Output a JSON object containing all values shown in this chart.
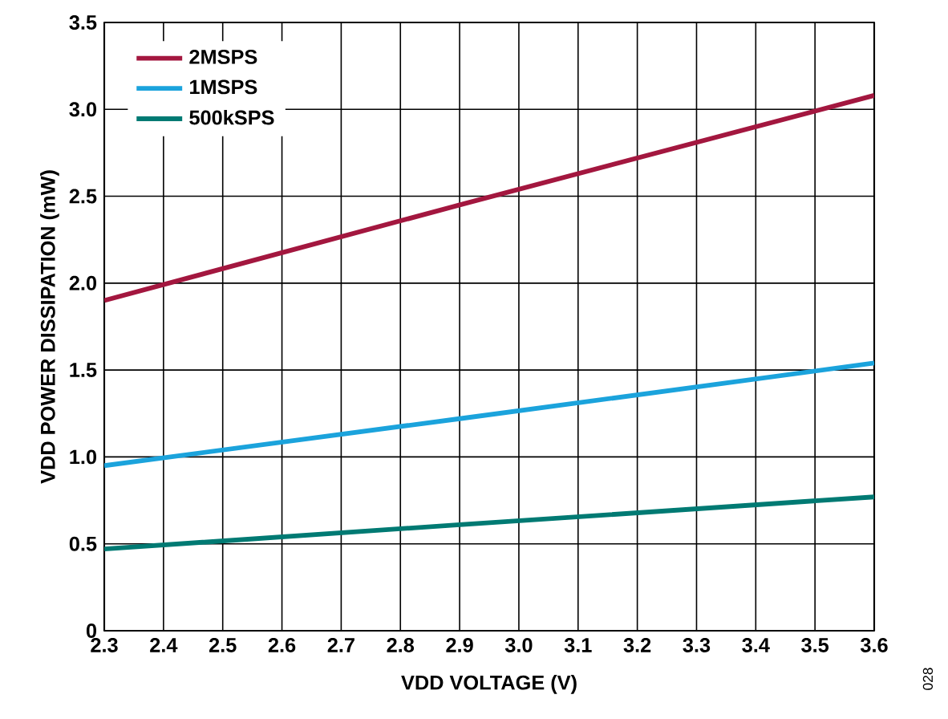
{
  "chart_data": {
    "type": "line",
    "xlabel": "VDD VOLTAGE (V)",
    "ylabel": "VDD POWER DISSIPATION (mW)",
    "x": [
      2.3,
      2.9,
      3.6
    ],
    "series": [
      {
        "name": "2MSPS",
        "color": "#a3173f",
        "values": [
          1.9,
          2.45,
          3.08
        ]
      },
      {
        "name": "1MSPS",
        "color": "#1ba3dc",
        "values": [
          0.95,
          1.22,
          1.54
        ]
      },
      {
        "name": "500kSPS",
        "color": "#007a73",
        "values": [
          0.47,
          0.61,
          0.77
        ]
      }
    ],
    "xlim": [
      2.3,
      3.6
    ],
    "xticks": [
      2.3,
      2.4,
      2.5,
      2.6,
      2.7,
      2.8,
      2.9,
      {
        "value": 3.0,
        "label": "3.0"
      },
      3.1,
      3.2,
      3.3,
      3.4,
      3.5,
      3.6
    ],
    "ylim": [
      0,
      3.5
    ],
    "yticks": [
      0,
      0.5,
      {
        "value": 1.0,
        "label": "1.0"
      },
      1.5,
      {
        "value": 2.0,
        "label": "2.0"
      },
      2.5,
      {
        "value": 3.0,
        "label": "3.0"
      },
      3.5
    ],
    "grid": true,
    "legend": "top left",
    "marker": "none",
    "line_style": "solid",
    "annotations": [
      "028"
    ]
  }
}
